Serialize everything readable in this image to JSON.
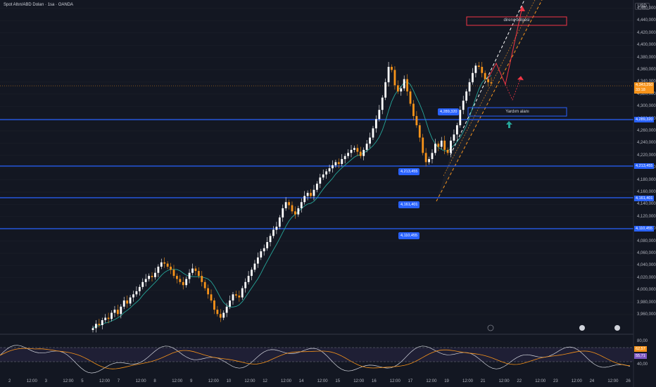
{
  "chart_title": "Spot Altın/ABD Doları · 1sa · OANDA",
  "currency": "USD",
  "price_axis": [
    "4,460,000",
    "4,440,000",
    "4,420,000",
    "4,400,000",
    "4,380,000",
    "4,360,000",
    "4,340,000",
    "4,320,000",
    "4,300,000",
    "4,280,000",
    "4,260,000",
    "4,240,000",
    "4,220,000",
    "4,200,000",
    "4,180,000",
    "4,160,000",
    "4,140,000",
    "4,120,000",
    "4,100,000",
    "4,080,000",
    "4,060,000",
    "4,040,000",
    "4,020,000",
    "4,000,000",
    "3,980,000",
    "3,960,000"
  ],
  "date_axis": [
    "2",
    "12:00",
    "3",
    "12:00",
    "5",
    "12:00",
    "7",
    "12:00",
    "8",
    "12:00",
    "9",
    "12:00",
    "10",
    "12:00",
    "12",
    "12:00",
    "14",
    "12:00",
    "15",
    "12:00",
    "16",
    "12:00",
    "17",
    "12:00",
    "19",
    "12:00",
    "21",
    "12:00",
    "22",
    "12:00",
    "23",
    "12:00",
    "24",
    "12:00",
    "26"
  ],
  "levels": [
    {
      "tag": "4,289,320",
      "box": "4,289,320"
    },
    {
      "tag": "4,213,455",
      "box": "4,213,455"
    },
    {
      "tag": "4,161,401",
      "box": "4,161,401"
    },
    {
      "tag": "4,110,455",
      "box": "4,110,455"
    }
  ],
  "current_price": "4,343,250",
  "countdown": "33:18",
  "annotations": {
    "resistance": "direnç bölgesi",
    "support": "Yardım alanı"
  },
  "rsi": {
    "axis": [
      "80,00",
      "40,00"
    ],
    "value_a": "62,57",
    "value_b": "55,71"
  },
  "colors": {
    "bg": "#131722",
    "up": "#ffffff",
    "down": "#f7931a",
    "ma": "#26a69a",
    "level": "#2962ff",
    "red": "#f23645"
  },
  "chart_data": {
    "type": "candlestick",
    "series_close": [
      3945,
      3952,
      3950,
      3958,
      3962,
      3960,
      3970,
      3975,
      3968,
      3980,
      3990,
      3985,
      3995,
      4000,
      4005,
      4012,
      4020,
      4025,
      4030,
      4028,
      4035,
      4045,
      4052,
      4050,
      4045,
      4040,
      4030,
      4025,
      4020,
      4015,
      4025,
      4035,
      4042,
      4038,
      4030,
      4020,
      4010,
      4000,
      3990,
      3975,
      3968,
      3962,
      3970,
      3980,
      3990,
      4000,
      3998,
      3995,
      4010,
      4020,
      4030,
      4040,
      4050,
      4060,
      4070,
      4075,
      4085,
      4095,
      4105,
      4110,
      4125,
      4140,
      4150,
      4145,
      4135,
      4130,
      4140,
      4150,
      4160,
      4165,
      4160,
      4170,
      4180,
      4190,
      4195,
      4200,
      4205,
      4210,
      4215,
      4212,
      4220,
      4225,
      4230,
      4235,
      4238,
      4232,
      4225,
      4235,
      4245,
      4255,
      4270,
      4285,
      4300,
      4320,
      4345,
      4370,
      4365,
      4340,
      4330,
      4335,
      4350,
      4330,
      4310,
      4290,
      4275,
      4255,
      4230,
      4215,
      4220,
      4230,
      4245,
      4240,
      4250,
      4235,
      4230,
      4250,
      4260,
      4275,
      4300,
      4315,
      4330,
      4345,
      4360,
      4372,
      4370,
      4360,
      4350,
      4345,
      4343
    ],
    "y_range": [
      3950,
      4465
    ],
    "rsi_range": [
      30,
      90
    ]
  }
}
